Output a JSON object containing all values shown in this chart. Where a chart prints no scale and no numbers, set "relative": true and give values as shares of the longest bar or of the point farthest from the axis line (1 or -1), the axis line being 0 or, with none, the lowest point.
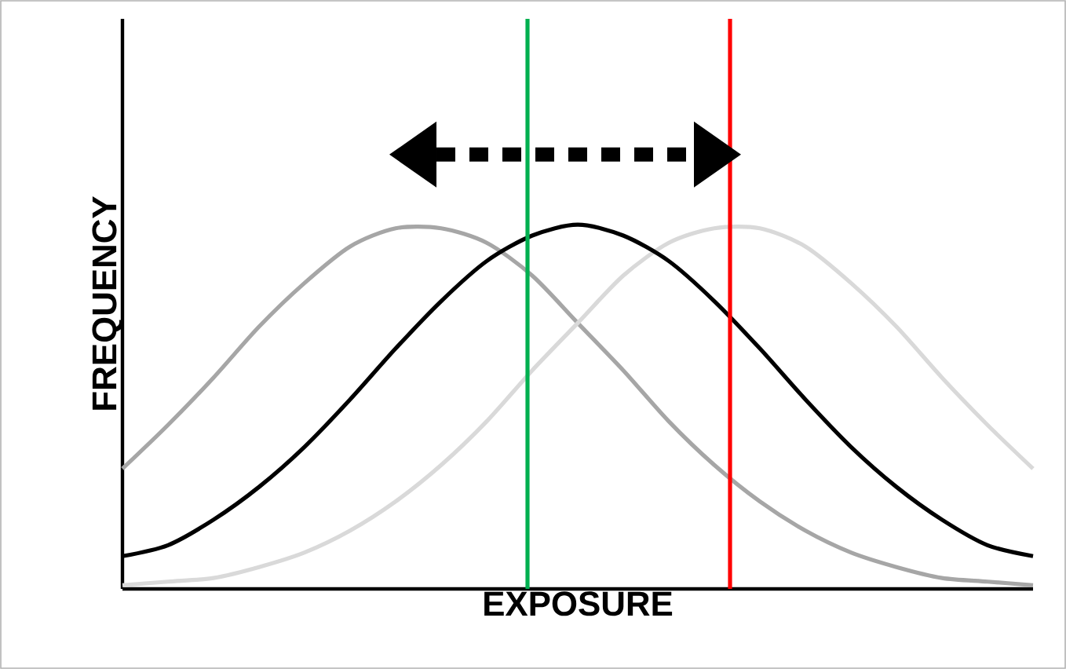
{
  "chart_data": {
    "type": "line",
    "relative": true,
    "xlabel": "EXPOSURE",
    "ylabel": "FREQUENCY",
    "categories": [
      null,
      null,
      null,
      null,
      null,
      null,
      null,
      null,
      null,
      null,
      null,
      null,
      null,
      null,
      null,
      null,
      null,
      null,
      null,
      null,
      null
    ],
    "series": [
      {
        "color": "#a6a6a6",
        "values": [
          0.33,
          0.45,
          0.58,
          0.72,
          0.84,
          0.94,
          0.99,
          0.99,
          0.95,
          0.86,
          0.73,
          0.6,
          0.46,
          0.34,
          0.24,
          0.16,
          0.1,
          0.06,
          0.03,
          0.02,
          0.01
        ]
      },
      {
        "color": "#d9d9d9",
        "values": [
          0.01,
          0.02,
          0.03,
          0.06,
          0.1,
          0.16,
          0.24,
          0.34,
          0.46,
          0.6,
          0.73,
          0.86,
          0.95,
          0.99,
          0.99,
          0.94,
          0.84,
          0.72,
          0.58,
          0.45,
          0.33
        ]
      },
      {
        "color": "#000000",
        "values": [
          0.09,
          0.12,
          0.19,
          0.28,
          0.39,
          0.52,
          0.66,
          0.79,
          0.9,
          0.97,
          1,
          0.97,
          0.9,
          0.79,
          0.66,
          0.52,
          0.39,
          0.28,
          0.19,
          0.12,
          0.09
        ]
      }
    ],
    "marker": "none",
    "line_style": "solid"
  }
}
